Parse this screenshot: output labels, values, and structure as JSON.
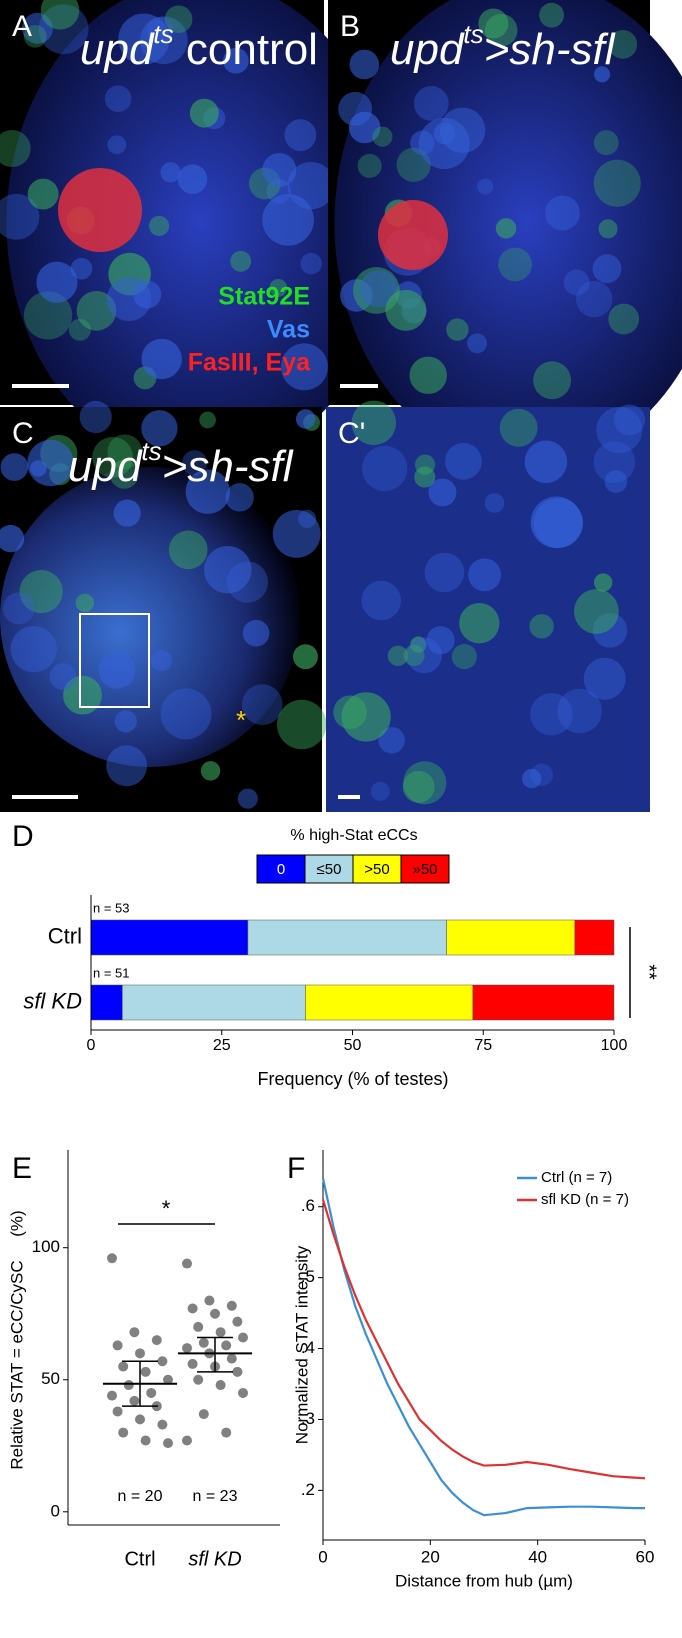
{
  "panels": [
    {
      "letter": "A",
      "label": {
        "prefix": "upd",
        "sup": "ts",
        "suffix": " control"
      },
      "stains": [
        "Stat92E",
        "Vas",
        "FasIII, Eya"
      ]
    },
    {
      "letter": "B",
      "label": {
        "prefix": "upd",
        "sup": "ts",
        "suffix": ">sh-sfl"
      }
    },
    {
      "letter": "C",
      "label": {
        "prefix": "upd",
        "sup": "ts",
        "suffix": ">sh-sfl"
      },
      "annotation": "*"
    },
    {
      "letter": "C'"
    }
  ],
  "chart_data": [
    {
      "type": "bar",
      "orientation": "horizontal",
      "stacked": true,
      "letter": "D",
      "title": "% high-Stat eCCs",
      "categories": [
        "Ctrl",
        "sfl KD"
      ],
      "series": [
        {
          "name": "0",
          "color": "#0000ff",
          "values": [
            30,
            6
          ]
        },
        {
          "name": "≤50",
          "color": "#add8e6",
          "values": [
            38,
            35
          ]
        },
        {
          "name": ">50",
          "color": "#ffff00",
          "values": [
            24.5,
            32
          ]
        },
        {
          "name": "»50",
          "color": "#ff0000",
          "values": [
            7.5,
            27
          ]
        }
      ],
      "annotations": [
        "n = 53",
        "n = 51"
      ],
      "significance": "**",
      "xlabel": "Frequency (% of testes)",
      "xlim": [
        0,
        100
      ],
      "xticks": [
        0,
        25,
        50,
        75,
        100
      ]
    },
    {
      "type": "scatter",
      "letter": "E",
      "categories": [
        "Ctrl",
        "sfl KD"
      ],
      "series": [
        {
          "color": "#808080",
          "values": [
            96,
            68,
            65,
            63,
            60,
            57,
            55,
            53,
            50,
            48,
            45,
            44,
            42,
            40,
            38,
            35,
            33,
            30,
            27,
            26
          ],
          "mean": 48.5,
          "ci": [
            40,
            57
          ],
          "n_label": "n = 20"
        },
        {
          "color": "#808080",
          "values": [
            94,
            80,
            78,
            77,
            75,
            72,
            70,
            68,
            66,
            64,
            63,
            62,
            60,
            58,
            56,
            55,
            53,
            50,
            48,
            45,
            37,
            30,
            27
          ],
          "mean": 60,
          "ci": [
            53,
            66
          ],
          "n_label": "n = 23"
        }
      ],
      "significance": "*",
      "ylabel": "Relative STAT = eCC/CySC     (%)",
      "ylim": [
        -5,
        137
      ],
      "yticks": [
        0,
        50,
        100
      ]
    },
    {
      "type": "line",
      "letter": "F",
      "x": [
        0,
        2,
        4,
        6,
        8,
        10,
        12,
        14,
        16,
        18,
        20,
        22,
        24,
        26,
        28,
        30,
        34,
        38,
        42,
        46,
        50,
        54,
        58,
        60
      ],
      "series": [
        {
          "name": "Ctrl (n = 7)",
          "color": "#3b8fd6",
          "values": [
            0.64,
            0.57,
            0.51,
            0.46,
            0.42,
            0.385,
            0.35,
            0.32,
            0.29,
            0.265,
            0.24,
            0.215,
            0.197,
            0.183,
            0.172,
            0.165,
            0.168,
            0.175,
            0.176,
            0.177,
            0.177,
            0.176,
            0.175,
            0.175
          ]
        },
        {
          "name": "sfl KD (n = 7)",
          "color": "#e03030",
          "values": [
            0.61,
            0.56,
            0.515,
            0.475,
            0.44,
            0.41,
            0.38,
            0.35,
            0.325,
            0.3,
            0.285,
            0.27,
            0.258,
            0.248,
            0.24,
            0.235,
            0.236,
            0.24,
            0.236,
            0.23,
            0.225,
            0.22,
            0.218,
            0.217
          ]
        }
      ],
      "xlabel": "Distance from hub (µm)",
      "ylabel": "Normalized STAT intensity",
      "xlim": [
        0,
        60
      ],
      "xticks": [
        0,
        20,
        40,
        60
      ],
      "ylim": [
        0.13,
        0.68
      ],
      "yticks": [
        {
          "value": 0.2,
          "label": ".2"
        },
        {
          "value": 0.3,
          "label": ".3"
        },
        {
          "value": 0.4,
          "label": ".4"
        },
        {
          "value": 0.5,
          "label": ".5"
        },
        {
          "value": 0.6,
          "label": ".6"
        }
      ],
      "legend": "upper right"
    }
  ]
}
